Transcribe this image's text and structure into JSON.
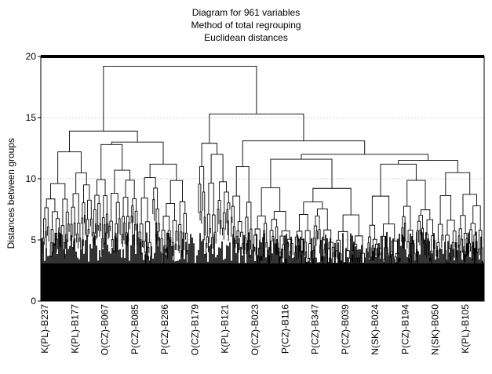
{
  "chart_data": {
    "type": "dendrogram",
    "title": "Diagram for 961 variables",
    "subtitle_lines": [
      "Method of total regrouping",
      "Euclidean distances"
    ],
    "ylabel": "Distances between groups",
    "ylim": [
      0,
      20
    ],
    "yticks": [
      0,
      5,
      10,
      15,
      20
    ],
    "grid": true,
    "leaf_count": 961,
    "x_labels": [
      "K(PL)-B237",
      "K(PL)-B177",
      "O(CZ)-B067",
      "P(CZ)-B085",
      "P(CZ)-B286",
      "O(CZ)-B179",
      "K(PL)-B121",
      "O(CZ)-B023",
      "P(CZ)-B116",
      "P(CZ)-B347",
      "P(CZ)-B039",
      "N(SK)-B024",
      "P(CZ)-B194",
      "N(SK)-B050",
      "K(PL)-B105"
    ],
    "top_merges": [
      {
        "height": 19.2,
        "children": [
          "left-group",
          "right-group"
        ]
      },
      {
        "height": 15.3,
        "children": [
          "middle-group",
          "right-cluster"
        ]
      },
      {
        "height": 13.9,
        "children": [
          "cluster-1",
          "cluster-2"
        ]
      },
      {
        "height": 13.0,
        "children": [
          "cluster-3",
          "cluster-4"
        ]
      },
      {
        "height": 12.9,
        "children": [
          "cluster-5",
          "cluster-6"
        ]
      }
    ],
    "colors": {
      "foreground": "#000000",
      "grid": "#c8c8c8",
      "background": "#ffffff"
    }
  }
}
